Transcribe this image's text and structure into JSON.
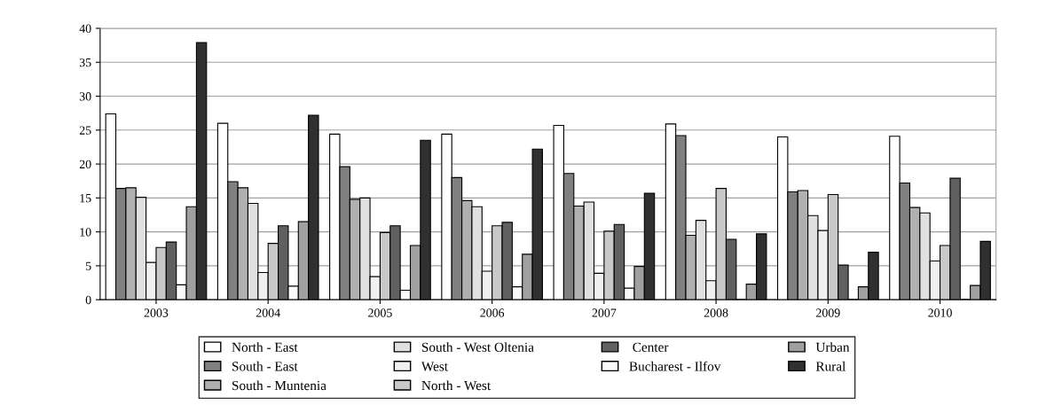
{
  "chart_data": {
    "type": "bar",
    "categories": [
      "2003",
      "2004",
      "2005",
      "2006",
      "2007",
      "2008",
      "2009",
      "2010"
    ],
    "series": [
      {
        "name": "North - East",
        "color": "#ffffff",
        "values": [
          27.4,
          26.0,
          24.4,
          24.4,
          25.7,
          25.9,
          24.0,
          24.1
        ]
      },
      {
        "name": "South - East",
        "color": "#808080",
        "values": [
          16.4,
          17.4,
          19.6,
          18.0,
          18.6,
          24.2,
          15.9,
          17.2
        ]
      },
      {
        "name": "South - Muntenia",
        "color": "#b0b0b0",
        "values": [
          16.5,
          16.5,
          14.8,
          14.6,
          13.8,
          9.5,
          16.1,
          13.6
        ]
      },
      {
        "name": "South - West Oltenia",
        "color": "#e0e0e0",
        "values": [
          15.1,
          14.2,
          15.0,
          13.7,
          14.4,
          11.7,
          12.4,
          12.8
        ]
      },
      {
        "name": "West",
        "color": "#f0f0f0",
        "values": [
          5.5,
          4.0,
          3.4,
          4.2,
          3.9,
          2.8,
          10.2,
          5.7
        ]
      },
      {
        "name": "North - West",
        "color": "#c8c8c8",
        "values": [
          7.7,
          8.3,
          9.9,
          10.9,
          10.1,
          16.4,
          15.5,
          8.0
        ]
      },
      {
        "name": " Center",
        "color": "#606060",
        "values": [
          8.5,
          10.9,
          10.9,
          11.4,
          11.1,
          8.9,
          5.1,
          17.9
        ]
      },
      {
        "name": "Bucharest - Ilfov",
        "color": "#fafafa",
        "values": [
          2.2,
          2.0,
          1.4,
          1.9,
          1.7,
          0,
          0,
          0
        ]
      },
      {
        "name": "Urban",
        "color": "#a0a0a0",
        "values": [
          13.7,
          11.5,
          8.0,
          6.7,
          4.9,
          2.3,
          1.9,
          2.1
        ]
      },
      {
        "name": "Rural",
        "color": "#303030",
        "values": [
          37.9,
          27.2,
          23.5,
          22.2,
          15.7,
          9.7,
          7.0,
          8.6
        ]
      }
    ],
    "ylim": [
      0,
      40
    ],
    "yticks": [
      0,
      5,
      10,
      15,
      20,
      25,
      30,
      35,
      40
    ],
    "grid": "y",
    "legend": "bottom"
  }
}
